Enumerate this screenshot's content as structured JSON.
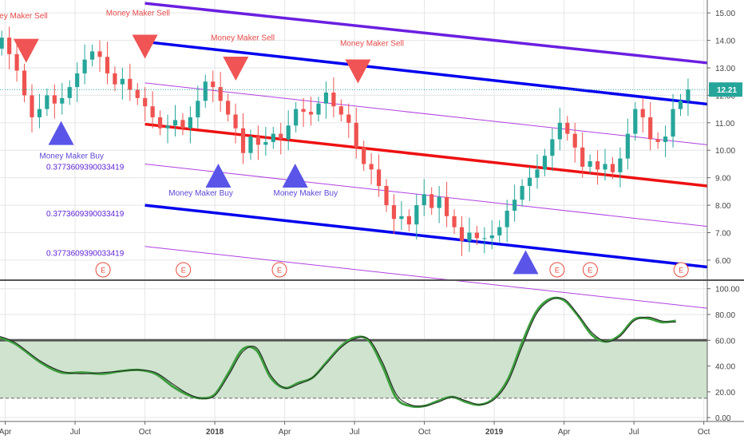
{
  "colors": {
    "up": "#26a69a",
    "down": "#ef5350",
    "channel_top": "#6a1fe0",
    "channel_upper": "#0000ee",
    "channel_mid": "#ee1111",
    "channel_lower": "#0000ee",
    "channel_thin": "#b040e0",
    "buy_marker": "#5a55e8",
    "sell_marker": "#f05454",
    "buy_text": "#5b49d6",
    "sell_text": "#e64a4a",
    "fib_text": "#5b1fd6",
    "osc_fast": "#3e9e3e",
    "osc_slow": "#222222",
    "osc_band": "#cfe3cf",
    "price_tag": "#26a69a",
    "grid": "#e6e6e6",
    "axis_text": "#444444"
  },
  "chart_data": [
    {
      "type": "candlestick",
      "name": "price",
      "x_ticks": [
        "Apr",
        "Jul",
        "Oct",
        "2018",
        "Apr",
        "Jul",
        "Oct",
        "2019",
        "Apr",
        "Jul",
        "Oct"
      ],
      "x_tick_t": [
        1,
        3,
        5,
        7,
        9,
        11,
        13,
        15,
        17,
        19,
        21
      ],
      "y_ticks": [
        "15.00",
        "14.00",
        "13.00",
        "12.00",
        "11.00",
        "10.00",
        "9.00",
        "8.00",
        "7.00",
        "6.00"
      ],
      "y_tick_values": [
        15,
        14,
        13,
        12,
        11,
        10,
        9,
        8,
        7,
        6
      ],
      "ylim": [
        5.3,
        15.47
      ],
      "xlim": [
        0.85,
        21.1
      ],
      "last_price": "12.21",
      "last_price_value": 12.21,
      "closes": [
        14.1,
        13.5,
        12.9,
        12.0,
        11.2,
        11.5,
        12.0,
        11.7,
        11.9,
        12.3,
        12.8,
        13.3,
        13.6,
        13.4,
        12.8,
        12.4,
        12.6,
        12.2,
        11.9,
        11.6,
        11.2,
        10.8,
        10.9,
        11.1,
        10.8,
        11.2,
        11.8,
        12.5,
        12.3,
        11.8,
        11.3,
        10.8,
        9.9,
        10.5,
        10.2,
        10.3,
        10.6,
        10.4,
        10.9,
        11.5,
        11.4,
        11.3,
        11.7,
        12.1,
        11.6,
        11.3,
        11.0,
        10.1,
        9.5,
        9.3,
        8.7,
        8.0,
        7.5,
        7.6,
        7.3,
        8.0,
        8.4,
        7.9,
        8.3,
        7.6,
        7.2,
        6.7,
        7.0,
        6.8,
        6.8,
        6.9,
        7.2,
        7.8,
        8.2,
        8.7,
        9.0,
        9.3,
        9.8,
        10.4,
        11.0,
        10.6,
        10.1,
        9.4,
        9.6,
        9.3,
        9.5,
        9.2,
        9.7,
        10.6,
        11.5,
        11.2,
        10.4,
        10.3,
        10.5,
        11.5,
        11.8,
        12.21
      ],
      "series": [
        {
          "name": "channel-top",
          "kind": "line",
          "x": [
            5.0,
            21.1
          ],
          "y": [
            15.35,
            13.18
          ]
        },
        {
          "name": "channel-upper",
          "kind": "line",
          "x": [
            5.0,
            21.1
          ],
          "y": [
            13.95,
            11.68
          ]
        },
        {
          "name": "channel-mid-thin",
          "kind": "line",
          "x": [
            5.0,
            21.1
          ],
          "y": [
            12.45,
            10.2
          ]
        },
        {
          "name": "channel-mid",
          "kind": "line",
          "x": [
            5.0,
            21.1
          ],
          "y": [
            10.95,
            8.7
          ]
        },
        {
          "name": "channel-lower-thin",
          "kind": "line",
          "x": [
            5.0,
            21.1
          ],
          "y": [
            9.5,
            7.23
          ]
        },
        {
          "name": "channel-lower",
          "kind": "line",
          "x": [
            5.0,
            21.1
          ],
          "y": [
            8.0,
            5.75
          ]
        },
        {
          "name": "channel-bottom-thin",
          "kind": "line",
          "x": [
            5.0,
            21.1
          ],
          "y": [
            6.5,
            4.25
          ]
        }
      ],
      "sell_markers": [
        {
          "t": 1.6,
          "y": 13.65
        },
        {
          "t": 5.0,
          "y": 13.8
        },
        {
          "t": 7.6,
          "y": 13.0
        },
        {
          "t": 11.1,
          "y": 12.9
        }
      ],
      "buy_markers": [
        {
          "t": 2.6,
          "y": 10.6
        },
        {
          "t": 7.1,
          "y": 9.05
        },
        {
          "t": 9.3,
          "y": 9.05
        },
        {
          "t": 15.9,
          "y": 5.9
        }
      ],
      "earnings": [
        {
          "t": 3.8,
          "label": "E"
        },
        {
          "t": 6.1,
          "label": "E"
        },
        {
          "t": 8.85,
          "label": "E"
        },
        {
          "t": 16.8,
          "label": "E"
        },
        {
          "t": 17.75,
          "label": "E"
        },
        {
          "t": 20.35,
          "label": "E"
        }
      ],
      "sell_labels": [
        {
          "t": 1.3,
          "y": 14.8,
          "text": "Money Maker Sell"
        },
        {
          "t": 4.8,
          "y": 14.9,
          "text": "Money Maker Sell"
        },
        {
          "t": 7.8,
          "y": 14.0,
          "text": "Money Maker Sell"
        },
        {
          "t": 11.5,
          "y": 13.8,
          "text": "Money Maker Sell"
        }
      ],
      "buy_labels": [
        {
          "t": 2.9,
          "y": 9.7,
          "text": "Money Maker Buy"
        },
        {
          "t": 6.6,
          "y": 8.35,
          "text": "Money Maker Buy"
        },
        {
          "t": 9.6,
          "y": 8.35,
          "text": "Money Maker Buy"
        }
      ],
      "fib_labels": [
        {
          "t": 4.4,
          "y": 9.3,
          "text": "0.3773609390033419"
        },
        {
          "t": 4.4,
          "y": 7.6,
          "text": "0.3773609390033419"
        },
        {
          "t": 4.4,
          "y": 6.15,
          "text": "0.3773609390033419"
        }
      ]
    },
    {
      "type": "line",
      "name": "oscillator",
      "y_ticks": [
        "100.00",
        "80.00",
        "60.00",
        "40.00",
        "20.00",
        "0.00"
      ],
      "y_tick_values": [
        100,
        80,
        60,
        40,
        20,
        0
      ],
      "ylim": [
        -3,
        106
      ],
      "upper_level": 60,
      "lower_level": 15,
      "x": [
        0.85,
        1.3,
        2.0,
        2.6,
        3.2,
        3.8,
        4.3,
        4.8,
        5.3,
        5.8,
        6.2,
        6.6,
        7.0,
        7.4,
        7.8,
        8.2,
        8.6,
        9.0,
        9.4,
        9.8,
        10.2,
        10.6,
        11.0,
        11.4,
        11.8,
        12.2,
        12.6,
        13.0,
        13.4,
        13.8,
        14.2,
        14.6,
        15.0,
        15.4,
        15.8,
        16.2,
        16.6,
        17.0,
        17.4,
        17.8,
        18.2,
        18.6,
        19.0,
        19.4,
        19.8,
        20.2
      ],
      "series": [
        {
          "name": "fast",
          "values": [
            62,
            57,
            43,
            35,
            35,
            34,
            36,
            37,
            34,
            24,
            18,
            15,
            18,
            35,
            53,
            52,
            31,
            23,
            27,
            31,
            43,
            55,
            62,
            60,
            40,
            15,
            9,
            9,
            13,
            16,
            12,
            10,
            15,
            30,
            58,
            82,
            92,
            91,
            79,
            64,
            59,
            64,
            76,
            77,
            74,
            75
          ]
        },
        {
          "name": "slow",
          "values": [
            63,
            58,
            44,
            36,
            34,
            35,
            36,
            37,
            35,
            26,
            19,
            15,
            17,
            33,
            51,
            54,
            33,
            23,
            26,
            31,
            42,
            54,
            61,
            61,
            43,
            18,
            10,
            9,
            12,
            16,
            13,
            10,
            14,
            28,
            55,
            80,
            91,
            92,
            80,
            66,
            59,
            63,
            75,
            78,
            75,
            74
          ]
        }
      ]
    }
  ]
}
